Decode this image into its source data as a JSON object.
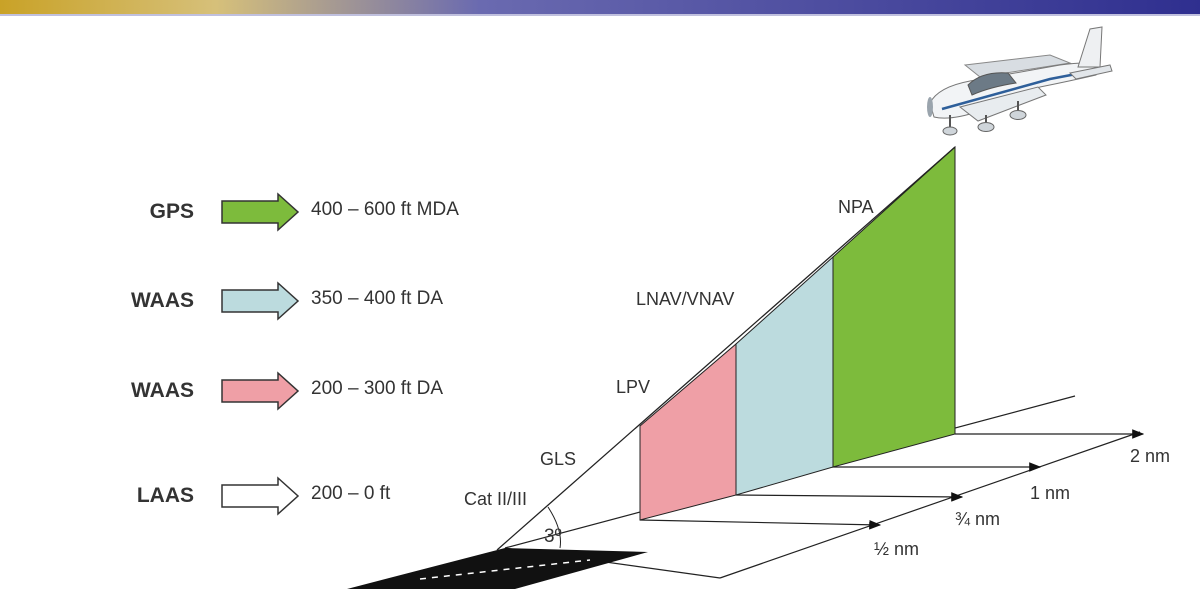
{
  "legend": [
    {
      "system": "GPS",
      "minimums": "400 – 600 ft  MDA",
      "color": "#7dbb3c"
    },
    {
      "system": "WAAS",
      "minimums": "350 – 400 ft DA",
      "color": "#bcdbde"
    },
    {
      "system": "WAAS",
      "minimums": "200 – 300 ft DA",
      "color": "#ef9fa6"
    },
    {
      "system": "LAAS",
      "minimums": "200 – 0 ft",
      "color": "#ffffff"
    }
  ],
  "diagram": {
    "approaches": {
      "npa": "NPA",
      "lnav_vnav": "LNAV/VNAV",
      "lpv": "LPV",
      "gls": "GLS",
      "cat": "Cat II/III"
    },
    "glide_angle": "3º",
    "distances": {
      "half": "½ nm",
      "three_quarter": "¾ nm",
      "one": "1 nm",
      "two": "2 nm"
    },
    "colors": {
      "npa": "#7dbb3c",
      "lnav_vnav": "#bcdbde",
      "lpv": "#ef9fa6",
      "runway": "#111111"
    }
  },
  "aircraft_icon": "airplane-icon"
}
